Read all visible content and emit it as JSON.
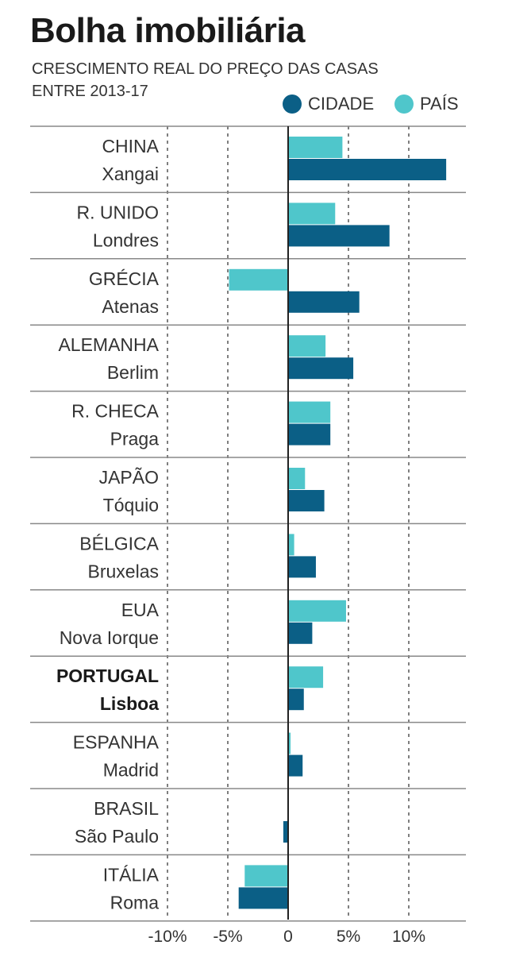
{
  "chart_data": {
    "type": "bar",
    "orientation": "horizontal",
    "title": "Bolha imobiliária",
    "subtitle": [
      "CRESCIMENTO REAL DO PREÇO DAS CASAS",
      "ENTRE 2013-17"
    ],
    "unit": "%",
    "xlim": [
      -10,
      15
    ],
    "xticks": [
      -10,
      -5,
      0,
      5,
      10
    ],
    "xtick_labels": [
      "-10%",
      "-5%",
      "0",
      "5%",
      "10%"
    ],
    "grid": "dashed vertical",
    "legend_position": "top-right",
    "series": [
      {
        "name": "CIDADE",
        "color": "#0b5f86"
      },
      {
        "name": "PAÍS",
        "color": "#4fc6cb"
      }
    ],
    "categories": [
      {
        "country": "CHINA",
        "city": "Xangai",
        "pais": 4.5,
        "cidade": 13.1,
        "highlight": false
      },
      {
        "country": "R. UNIDO",
        "city": "Londres",
        "pais": 3.9,
        "cidade": 8.4,
        "highlight": false
      },
      {
        "country": "GRÉCIA",
        "city": "Atenas",
        "pais": -4.9,
        "cidade": 5.9,
        "highlight": false
      },
      {
        "country": "ALEMANHA",
        "city": "Berlim",
        "pais": 3.1,
        "cidade": 5.4,
        "highlight": false
      },
      {
        "country": "R. CHECA",
        "city": "Praga",
        "pais": 3.5,
        "cidade": 3.5,
        "highlight": false
      },
      {
        "country": "JAPÃO",
        "city": "Tóquio",
        "pais": 1.4,
        "cidade": 3.0,
        "highlight": false
      },
      {
        "country": "BÉLGICA",
        "city": "Bruxelas",
        "pais": 0.5,
        "cidade": 2.3,
        "highlight": false
      },
      {
        "country": "EUA",
        "city": "Nova Iorque",
        "pais": 4.8,
        "cidade": 2.0,
        "highlight": false
      },
      {
        "country": "PORTUGAL",
        "city": "Lisboa",
        "pais": 2.9,
        "cidade": 1.3,
        "highlight": true
      },
      {
        "country": "ESPANHA",
        "city": "Madrid",
        "pais": 0.2,
        "cidade": 1.2,
        "highlight": false
      },
      {
        "country": "BRASIL",
        "city": "São Paulo",
        "pais": 0.0,
        "cidade": -0.4,
        "highlight": false
      },
      {
        "country": "ITÁLIA",
        "city": "Roma",
        "pais": -3.6,
        "cidade": -4.1,
        "highlight": false
      }
    ]
  }
}
